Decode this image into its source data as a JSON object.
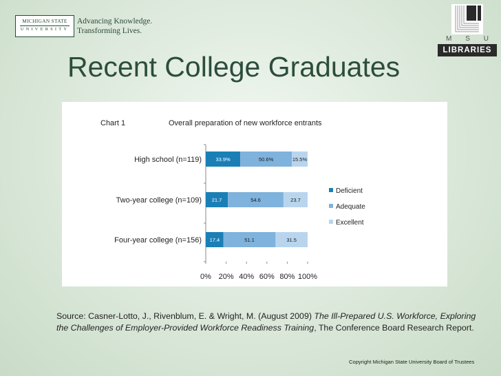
{
  "header": {
    "msu_logo_line1": "MICHIGAN STATE",
    "msu_logo_line2": "UNIVERSITY",
    "tagline_line1": "Advancing Knowledge.",
    "tagline_line2": "Transforming Lives.",
    "libraries_msu": [
      "M",
      "S",
      "U"
    ],
    "libraries_label": "LIBRARIES"
  },
  "slide": {
    "title": "Recent College Graduates"
  },
  "chart_data": {
    "type": "bar",
    "orientation": "horizontal",
    "stacked": true,
    "chart_label": "Chart 1",
    "title": "Overall preparation of new workforce entrants",
    "categories": [
      "High school (n=119)",
      "Two-year college (n=109)",
      "Four-year college (n=156)"
    ],
    "series": [
      {
        "name": "Deficient",
        "color": "#1b7fb6",
        "values": [
          33.9,
          21.7,
          17.4
        ],
        "labels": [
          "33.9%",
          "21.7",
          "17.4"
        ]
      },
      {
        "name": "Adequate",
        "color": "#7fb2dc",
        "values": [
          50.6,
          54.6,
          51.1
        ],
        "labels": [
          "50.6%",
          "54.6",
          "51.1"
        ]
      },
      {
        "name": "Excellent",
        "color": "#b9d5ee",
        "values": [
          15.5,
          23.7,
          31.5
        ],
        "labels": [
          "15.5%",
          "23.7",
          "31.5"
        ]
      }
    ],
    "x_ticks": [
      "0%",
      "20%",
      "40%",
      "60%",
      "80%",
      "100%"
    ],
    "xlim": [
      0,
      100
    ],
    "legend_position": "right"
  },
  "source": {
    "prefix": "Source:  Casner-Lotto, J., Rivenblum, E. & Wright, M. (August 2009) ",
    "title_italic": "The Ill-Prepared U.S. Workforce, Exploring the Challenges of Employer-Provided Workforce Readiness Training",
    "suffix": ", The Conference Board Research Report."
  },
  "footer": {
    "copyright": "Copyright Michigan State University Board of Trustees"
  }
}
